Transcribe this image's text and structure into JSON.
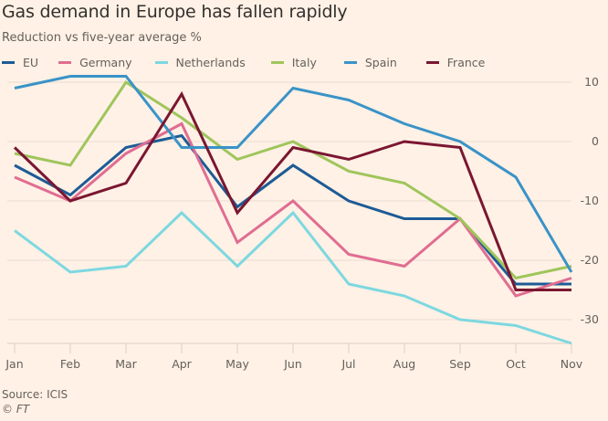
{
  "chart_data": {
    "type": "line",
    "title": "Gas demand in Europe has fallen rapidly",
    "subtitle": "Reduction vs five-year average %",
    "xlabel": "",
    "ylabel": "",
    "categories": [
      "Jan",
      "Feb",
      "Mar",
      "Apr",
      "May",
      "Jun",
      "Jul",
      "Aug",
      "Sep",
      "Oct",
      "Nov"
    ],
    "ylim": [
      -34,
      12
    ],
    "yticks": [
      10,
      0,
      -10,
      -20,
      -30
    ],
    "grid": true,
    "legend_position": "top-left",
    "series": [
      {
        "name": "EU",
        "color": "#1d5b96",
        "values": [
          -4,
          -9,
          -1,
          1,
          -11,
          -4,
          -10,
          -13,
          -13,
          -24,
          -24
        ]
      },
      {
        "name": "Germany",
        "color": "#e06d92",
        "values": [
          -6,
          -10,
          -2,
          3,
          -17,
          -10,
          -19,
          -21,
          -13,
          -26,
          -23
        ]
      },
      {
        "name": "Netherlands",
        "color": "#7dd8e0",
        "values": [
          -15,
          -22,
          -21,
          -12,
          -21,
          -12,
          -24,
          -26,
          -30,
          -31,
          -34
        ]
      },
      {
        "name": "Italy",
        "color": "#9fc55c",
        "values": [
          -2,
          -4,
          10,
          4,
          -3,
          0,
          -5,
          -7,
          -13,
          -23,
          -21
        ]
      },
      {
        "name": "Spain",
        "color": "#3a93c8",
        "values": [
          9,
          11,
          11,
          -1,
          -1,
          9,
          7,
          3,
          0,
          -6,
          -22
        ]
      },
      {
        "name": "France",
        "color": "#7a1631",
        "values": [
          -1,
          -10,
          -7,
          8,
          -12,
          -1,
          -3,
          0,
          -1,
          -25,
          -25
        ]
      }
    ]
  },
  "footer": {
    "source": "Source: ICIS",
    "credit": "© FT"
  }
}
